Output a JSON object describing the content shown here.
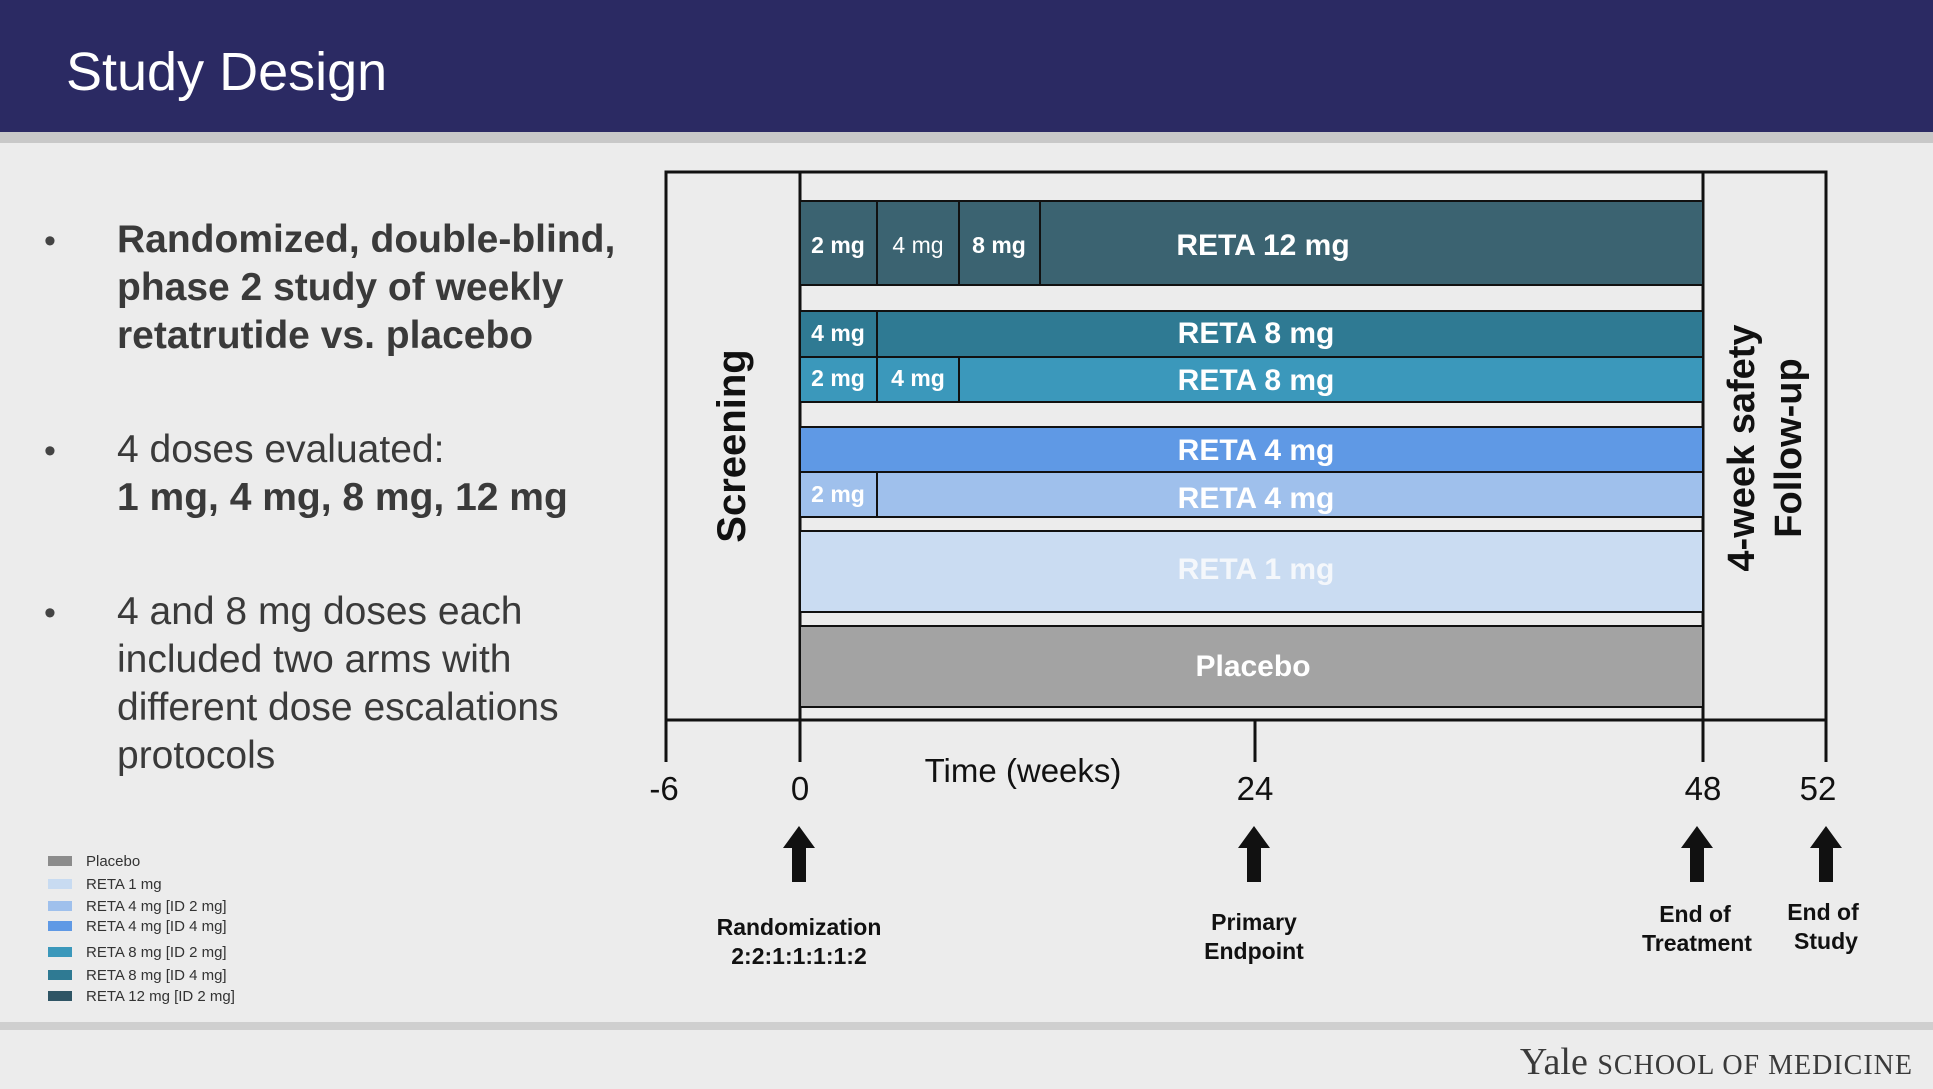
{
  "header": {
    "title": "Study Design"
  },
  "bullets": [
    {
      "lines": [
        "Randomized, double-blind,",
        "phase 2 study of weekly",
        "retatrutide vs. placebo"
      ]
    },
    {
      "lines": [
        "4 doses evaluated:",
        "1 mg, 4 mg, 8 mg, 12 mg"
      ]
    },
    {
      "lines": [
        "4 and 8 mg doses each",
        "included two arms with",
        "different dose escalations",
        "protocols"
      ]
    }
  ],
  "diagram": {
    "screening_label": "Screening",
    "followup_label_1": "4-week safety",
    "followup_label_2": "Follow-up",
    "axis_label": "Time (weeks)",
    "ticks": [
      "-6",
      "0",
      "24",
      "48",
      "52"
    ],
    "bars": [
      {
        "label": "RETA 12 mg",
        "color": "#3b6371",
        "text_color": "#ffffff",
        "steps": [
          "2 mg",
          "4 mg",
          "8 mg"
        ]
      },
      {
        "label": "RETA 8 mg",
        "color": "#2f7a93",
        "text_color": "#ffffff",
        "steps": [
          "4 mg"
        ]
      },
      {
        "label": "RETA 8 mg",
        "color": "#3b98bb",
        "text_color": "#ffffff",
        "steps": [
          "2 mg",
          "4 mg"
        ]
      },
      {
        "label": "RETA 4 mg",
        "color": "#5f99e5",
        "text_color": "#ffffff",
        "steps": []
      },
      {
        "label": "RETA 4 mg",
        "color": "#9fc0ec",
        "text_color": "#ffffff",
        "steps": [
          "2 mg"
        ]
      },
      {
        "label": "RETA 1 mg",
        "color": "#cadcf2",
        "text_color": "#f4f7fb",
        "steps": []
      },
      {
        "label": "Placebo",
        "color": "#a3a3a3",
        "text_color": "#ffffff",
        "steps": []
      }
    ],
    "milestones": [
      {
        "lines": [
          "Randomization",
          "2:2:1:1:1:1:2"
        ]
      },
      {
        "lines": [
          "Primary",
          "Endpoint"
        ]
      },
      {
        "lines": [
          "End of",
          "Treatment"
        ]
      },
      {
        "lines": [
          "End of",
          "Study"
        ]
      }
    ]
  },
  "legend": [
    {
      "label": "Placebo",
      "color": "#8c8c8c"
    },
    {
      "label": "RETA 1 mg",
      "color": "#c8dbf1"
    },
    {
      "label": "RETA 4 mg [ID 2 mg]",
      "color": "#9fc0ec"
    },
    {
      "label": "RETA 4 mg [ID 4 mg]",
      "color": "#5f99e5"
    },
    {
      "label": "RETA 8 mg [ID 2 mg]",
      "color": "#3b98bb"
    },
    {
      "label": "RETA 8 mg [ID 4 mg]",
      "color": "#2f7a93"
    },
    {
      "label": "RETA 12 mg [ID 2 mg]",
      "color": "#2f5565"
    }
  ],
  "footer": {
    "brand": "Yale",
    "school": "SCHOOL OF MEDICINE"
  }
}
